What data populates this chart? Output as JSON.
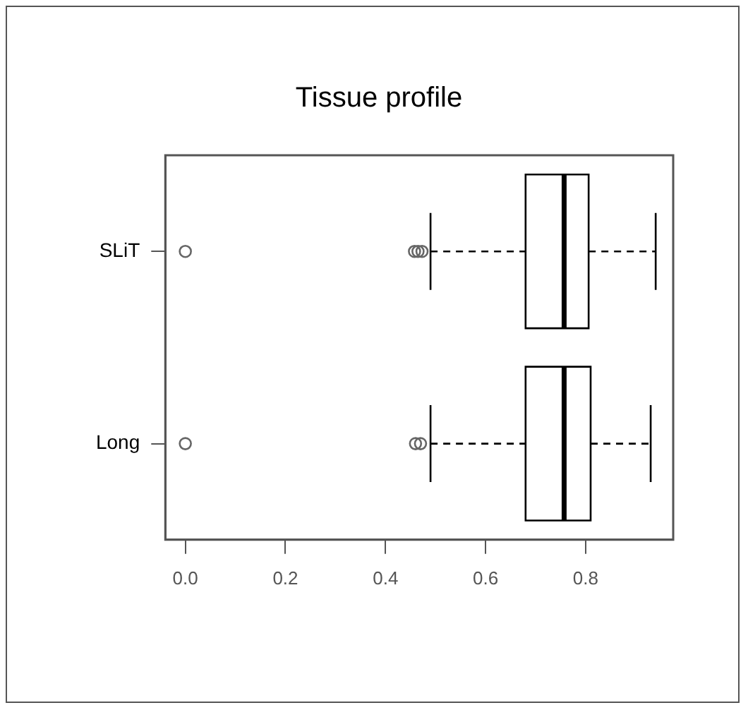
{
  "chart_data": {
    "type": "box",
    "orientation": "horizontal",
    "title": "Tissue profile",
    "categories": [
      "SLiT",
      "Long"
    ],
    "boxes": [
      {
        "low": 0.49,
        "q1": 0.68,
        "median": 0.757,
        "q3": 0.806,
        "high": 0.94,
        "outliers": [
          0,
          0.458,
          0.465,
          0.473
        ]
      },
      {
        "low": 0.49,
        "q1": 0.68,
        "median": 0.757,
        "q3": 0.81,
        "high": 0.93,
        "outliers": [
          0,
          0.46,
          0.47
        ]
      }
    ],
    "xlim": [
      -0.04,
      0.975
    ],
    "xticks": [
      {
        "value": 0,
        "label": "0.0"
      },
      0.2,
      0.4,
      0.6,
      0.8
    ],
    "grid": false,
    "legend": false
  }
}
